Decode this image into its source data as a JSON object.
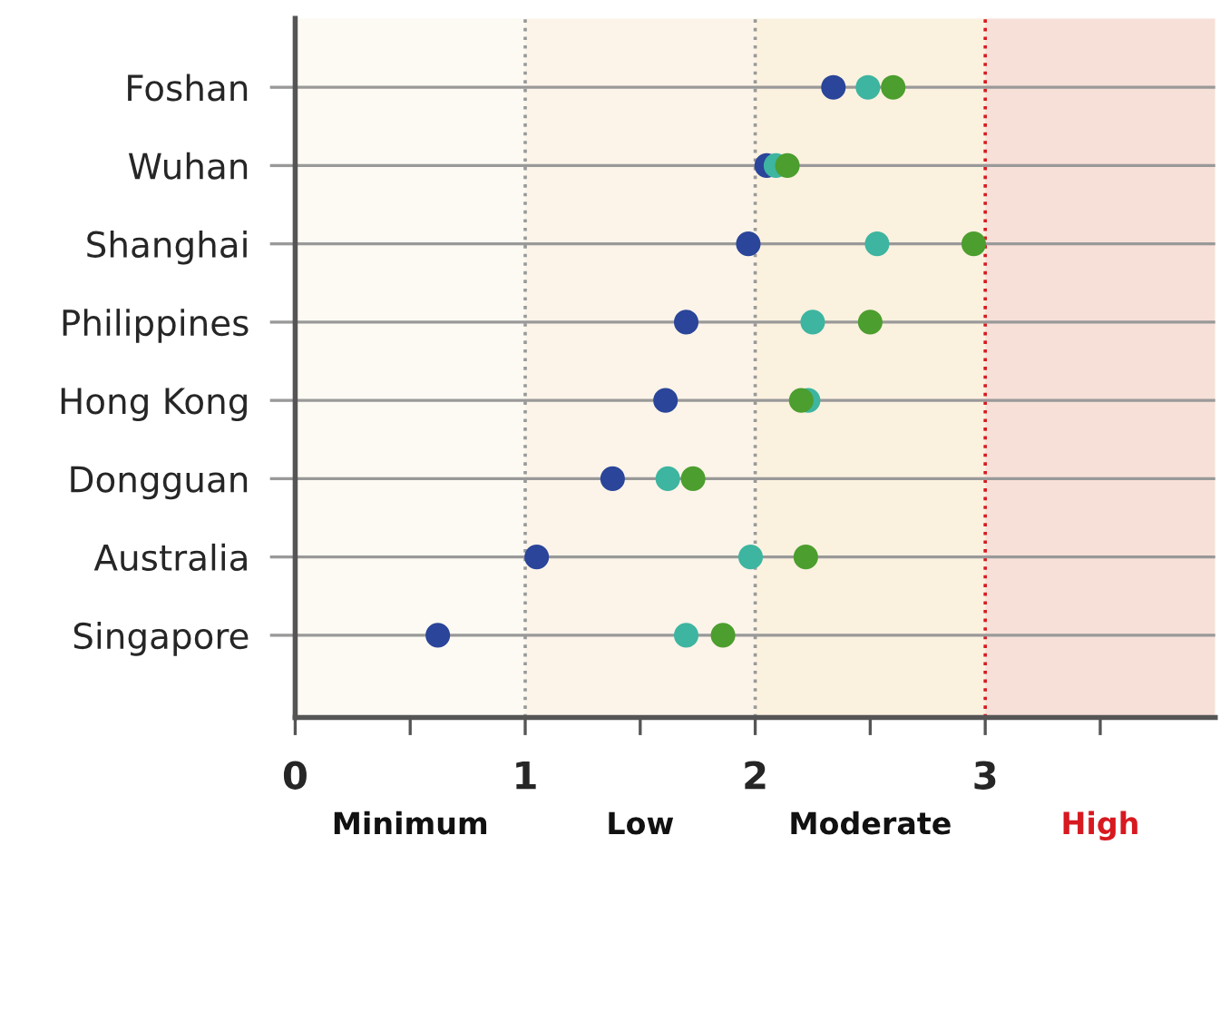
{
  "chart_data": {
    "type": "scatter",
    "categories": [
      "Foshan",
      "Wuhan",
      "Shanghai",
      "Philippines",
      "Hong Kong",
      "Dongguan",
      "Australia",
      "Singapore"
    ],
    "orientation": "horizontal",
    "series": [
      {
        "color": "#2a4599",
        "values": [
          2.34,
          2.05,
          1.97,
          1.7,
          1.61,
          1.38,
          1.05,
          0.62
        ]
      },
      {
        "color": "#3db5a0",
        "values": [
          2.49,
          2.09,
          2.53,
          2.25,
          2.23,
          1.62,
          1.98,
          1.7
        ]
      },
      {
        "color": "#4c9e2e",
        "values": [
          2.6,
          2.14,
          2.95,
          2.5,
          2.2,
          1.73,
          2.22,
          1.86
        ]
      }
    ],
    "xlim": [
      0,
      4
    ],
    "xticks": [
      0,
      {
        "value": 0.5,
        "label": null
      },
      1,
      {
        "value": 1.5,
        "label": null
      },
      2,
      {
        "value": 2.5,
        "label": null
      },
      3,
      {
        "value": 3.5,
        "label": null
      }
    ],
    "bands": [
      {
        "axis": "x",
        "from": 0,
        "to": 1,
        "color": "#fdfaf3"
      },
      {
        "axis": "x",
        "from": 1,
        "to": 2,
        "color": "#fcf4e9"
      },
      {
        "axis": "x",
        "from": 2,
        "to": 3,
        "color": "#fbf1df"
      },
      {
        "axis": "x",
        "from": 3,
        "to": 4,
        "color": "#f7e0d8"
      }
    ],
    "annotations": [
      "Minimum",
      "Low",
      "Moderate",
      "High"
    ],
    "ref_lines": [
      {
        "axis": "x",
        "value": 1,
        "label": null,
        "color": "#999999",
        "line_style": "dotted"
      },
      {
        "axis": "x",
        "value": 2,
        "label": null,
        "color": "#999999",
        "line_style": "dotted"
      },
      {
        "axis": "x",
        "value": 3,
        "label": null,
        "color": "#d71920",
        "line_style": "dotted"
      }
    ],
    "grid": "y",
    "marker": "circle",
    "legend": false
  }
}
